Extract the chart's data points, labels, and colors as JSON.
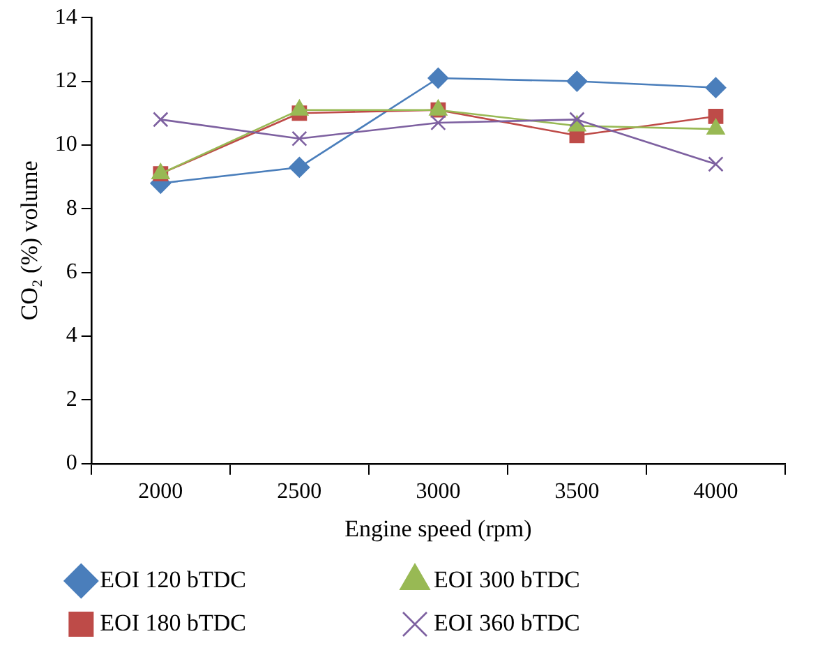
{
  "chart_data": {
    "type": "line",
    "xlabel": "Engine speed (rpm)",
    "ylabel": "CO₂ (%) volume",
    "categories": [
      "2000",
      "2500",
      "3000",
      "3500",
      "4000"
    ],
    "ylim": [
      0,
      14
    ],
    "yticks": [
      0,
      2,
      4,
      6,
      8,
      10,
      12,
      14
    ],
    "grid": false,
    "legend": "bottom",
    "line_style": "solid",
    "series": [
      {
        "name": "EOI 120 bTDC",
        "color": "#4a7ebb",
        "marker": "diamond",
        "values": [
          8.8,
          9.3,
          12.1,
          12.0,
          11.8
        ]
      },
      {
        "name": "EOI 180 bTDC",
        "color": "#be4b48",
        "marker": "square",
        "values": [
          9.1,
          11.0,
          11.1,
          10.3,
          10.9
        ]
      },
      {
        "name": "EOI 300 bTDC",
        "color": "#98b954",
        "marker": "triangle",
        "values": [
          9.1,
          11.1,
          11.1,
          10.6,
          10.5
        ]
      },
      {
        "name": "EOI 360 bTDC",
        "color": "#7d60a0",
        "marker": "cross",
        "values": [
          10.8,
          10.2,
          10.7,
          10.8,
          9.4
        ]
      }
    ]
  }
}
